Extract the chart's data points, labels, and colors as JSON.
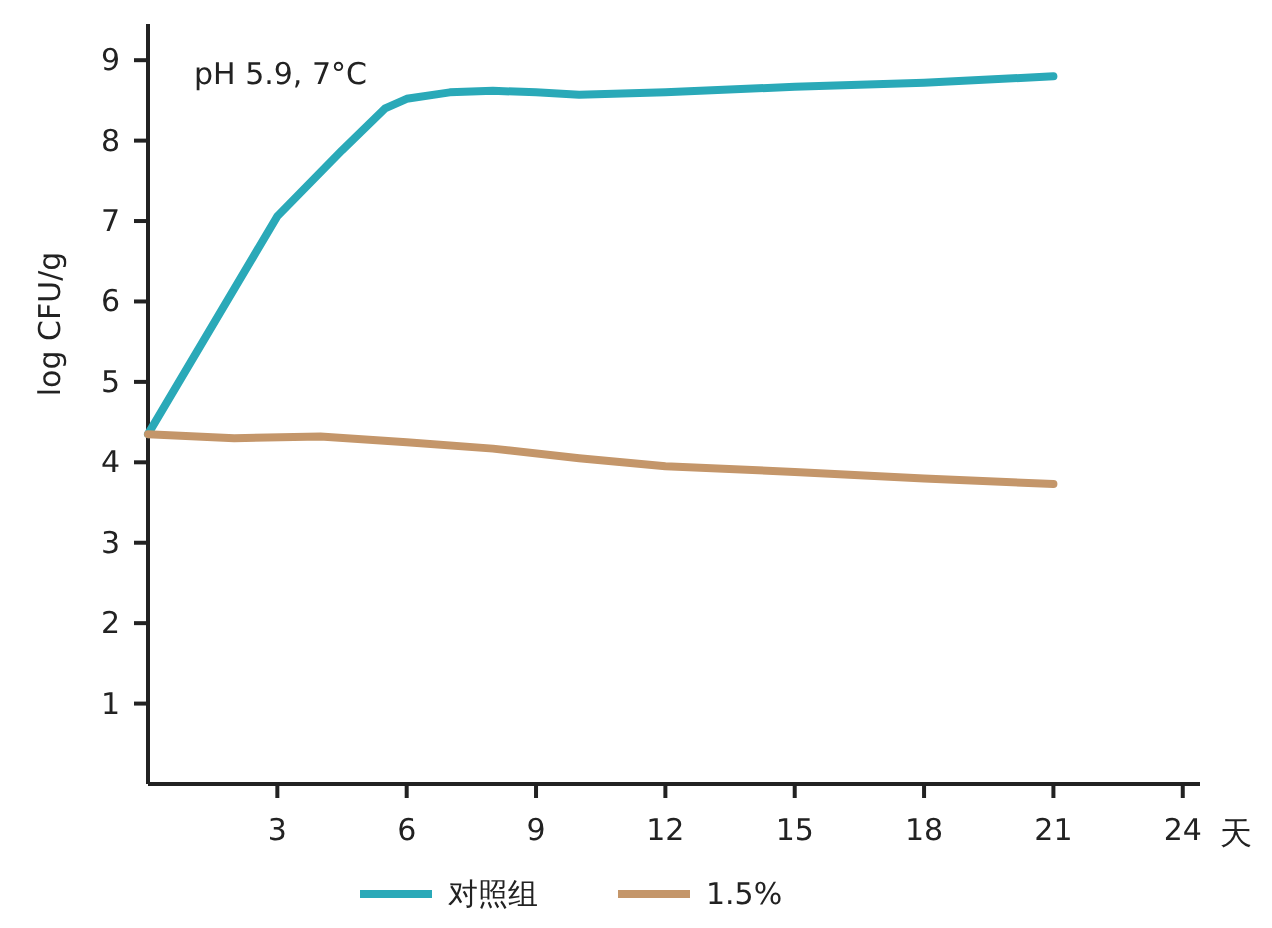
{
  "chart_data": {
    "type": "line",
    "xlabel": "天",
    "ylabel": "log CFU/g",
    "annotations": [
      "pH 5.9, 7°C"
    ],
    "xlim": [
      0,
      24.4
    ],
    "ylim": [
      0,
      9.45
    ],
    "xticks": [
      3,
      6,
      9,
      12,
      15,
      18,
      21,
      24
    ],
    "yticks": [
      1,
      2,
      3,
      4,
      5,
      6,
      7,
      8,
      9
    ],
    "legend": "bottom",
    "grid": false,
    "marker": "none",
    "line_style": "solid",
    "series": [
      {
        "name": "对照组",
        "color": "#2aa9b8",
        "x": [
          0,
          3,
          4.5,
          5.5,
          6,
          7,
          8,
          9,
          10,
          12,
          15,
          18,
          21
        ],
        "values": [
          4.35,
          7.06,
          7.88,
          8.4,
          8.52,
          8.6,
          8.62,
          8.6,
          8.57,
          8.6,
          8.67,
          8.72,
          8.8
        ]
      },
      {
        "name": "1.5%",
        "color": "#c4966a",
        "x": [
          0,
          2,
          4,
          6,
          8,
          10,
          12,
          15,
          18,
          21
        ],
        "values": [
          4.35,
          4.3,
          4.32,
          4.25,
          4.17,
          4.05,
          3.95,
          3.88,
          3.8,
          3.73
        ]
      }
    ]
  }
}
